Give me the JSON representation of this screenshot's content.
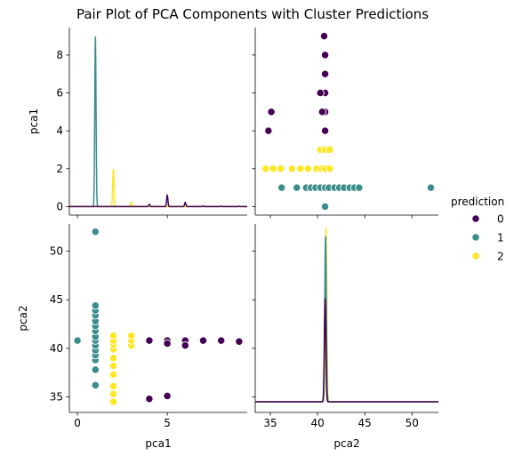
{
  "chart_data": {
    "type": "scatter",
    "title": "Pair Plot of PCA Components with Cluster Predictions",
    "variables": [
      "pca1",
      "pca2"
    ],
    "axes": {
      "pca1": {
        "lim": [
          -0.45,
          9.45
        ],
        "ticks": [
          0,
          5
        ],
        "ticks_as_y": [
          0,
          2,
          4,
          6,
          8
        ]
      },
      "pca2": {
        "lim": [
          33.4,
          52.8
        ],
        "ticks": [
          35,
          40,
          45,
          50
        ],
        "ticks_as_x": [
          35,
          40,
          45,
          50
        ]
      }
    },
    "legend": {
      "title": "prediction",
      "placement": "right",
      "entries": [
        {
          "label": "0",
          "color": "#440154"
        },
        {
          "label": "1",
          "color": "#3b8d8c"
        },
        {
          "label": "2",
          "color": "#fde725"
        }
      ]
    },
    "series": [
      {
        "prediction": 0,
        "color": "#440154",
        "points": [
          [
            4,
            34.8
          ],
          [
            5,
            35.1
          ],
          [
            4,
            40.8
          ],
          [
            5,
            40.8
          ],
          [
            5,
            40.5
          ],
          [
            6,
            40.8
          ],
          [
            6,
            40.3
          ],
          [
            7,
            40.8
          ],
          [
            8,
            40.8
          ],
          [
            9,
            40.7
          ]
        ]
      },
      {
        "prediction": 1,
        "color": "#3b8d8c",
        "points": [
          [
            0,
            40.8
          ],
          [
            1,
            36.2
          ],
          [
            1,
            37.8
          ],
          [
            1,
            38.8
          ],
          [
            1,
            39.3
          ],
          [
            1,
            39.8
          ],
          [
            1,
            40.3
          ],
          [
            1,
            40.8
          ],
          [
            1,
            41.2
          ],
          [
            1,
            41.8
          ],
          [
            1,
            42.3
          ],
          [
            1,
            42.8
          ],
          [
            1,
            43.4
          ],
          [
            1,
            43.9
          ],
          [
            1,
            44.4
          ],
          [
            1,
            52.0
          ]
        ]
      },
      {
        "prediction": 2,
        "color": "#fde725",
        "points": [
          [
            2,
            34.5
          ],
          [
            2,
            35.3
          ],
          [
            2,
            36.1
          ],
          [
            2,
            37.3
          ],
          [
            2,
            38.2
          ],
          [
            2,
            39.0
          ],
          [
            2,
            39.9
          ],
          [
            2,
            40.4
          ],
          [
            2,
            40.8
          ],
          [
            2,
            41.3
          ],
          [
            3,
            40.3
          ],
          [
            3,
            40.8
          ],
          [
            3,
            41.3
          ]
        ]
      }
    ],
    "kde": [
      {
        "variable": "pca1",
        "color": "#3b8d8c",
        "peaks": [
          [
            1,
            9.0
          ]
        ]
      },
      {
        "variable": "pca1",
        "color": "#fde725",
        "peaks": [
          [
            2,
            2.0
          ],
          [
            3,
            0.25
          ]
        ]
      },
      {
        "variable": "pca1",
        "color": "#440154",
        "peaks": [
          [
            4,
            0.12
          ],
          [
            5,
            0.6
          ],
          [
            6,
            0.22
          ],
          [
            7,
            0.03
          ],
          [
            8,
            0.02
          ],
          [
            9,
            0.02
          ]
        ]
      },
      {
        "variable": "pca2",
        "color": "#fde725",
        "peaks": [
          [
            40.9,
            18.5
          ]
        ]
      },
      {
        "variable": "pca2",
        "color": "#3b8d8c",
        "peaks": [
          [
            40.85,
            17.8
          ]
        ]
      },
      {
        "variable": "pca2",
        "color": "#440154",
        "peaks": [
          [
            40.8,
            11.0
          ]
        ]
      }
    ]
  }
}
